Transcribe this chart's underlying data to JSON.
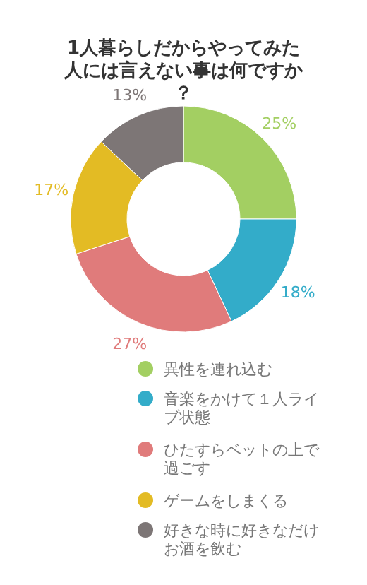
{
  "chart_data": {
    "type": "donut",
    "title": "1人暮らしだからやってみた人には言えない事は何ですか？",
    "categories": [
      "異性を連れ込む",
      "音楽をかけて１人ライブ状態",
      "ひたすらベットの上で過ごす",
      "ゲームをしまくる",
      "好きな時に好きなだけお酒を飲む"
    ],
    "values": [
      25,
      18,
      27,
      17,
      13
    ],
    "value_labels": [
      "25%",
      "18%",
      "27%",
      "17%",
      "13%"
    ],
    "colors": [
      "#a3cf62",
      "#33acc9",
      "#e07b7b",
      "#e3bb24",
      "#7d7676"
    ],
    "legend": "bottom"
  }
}
